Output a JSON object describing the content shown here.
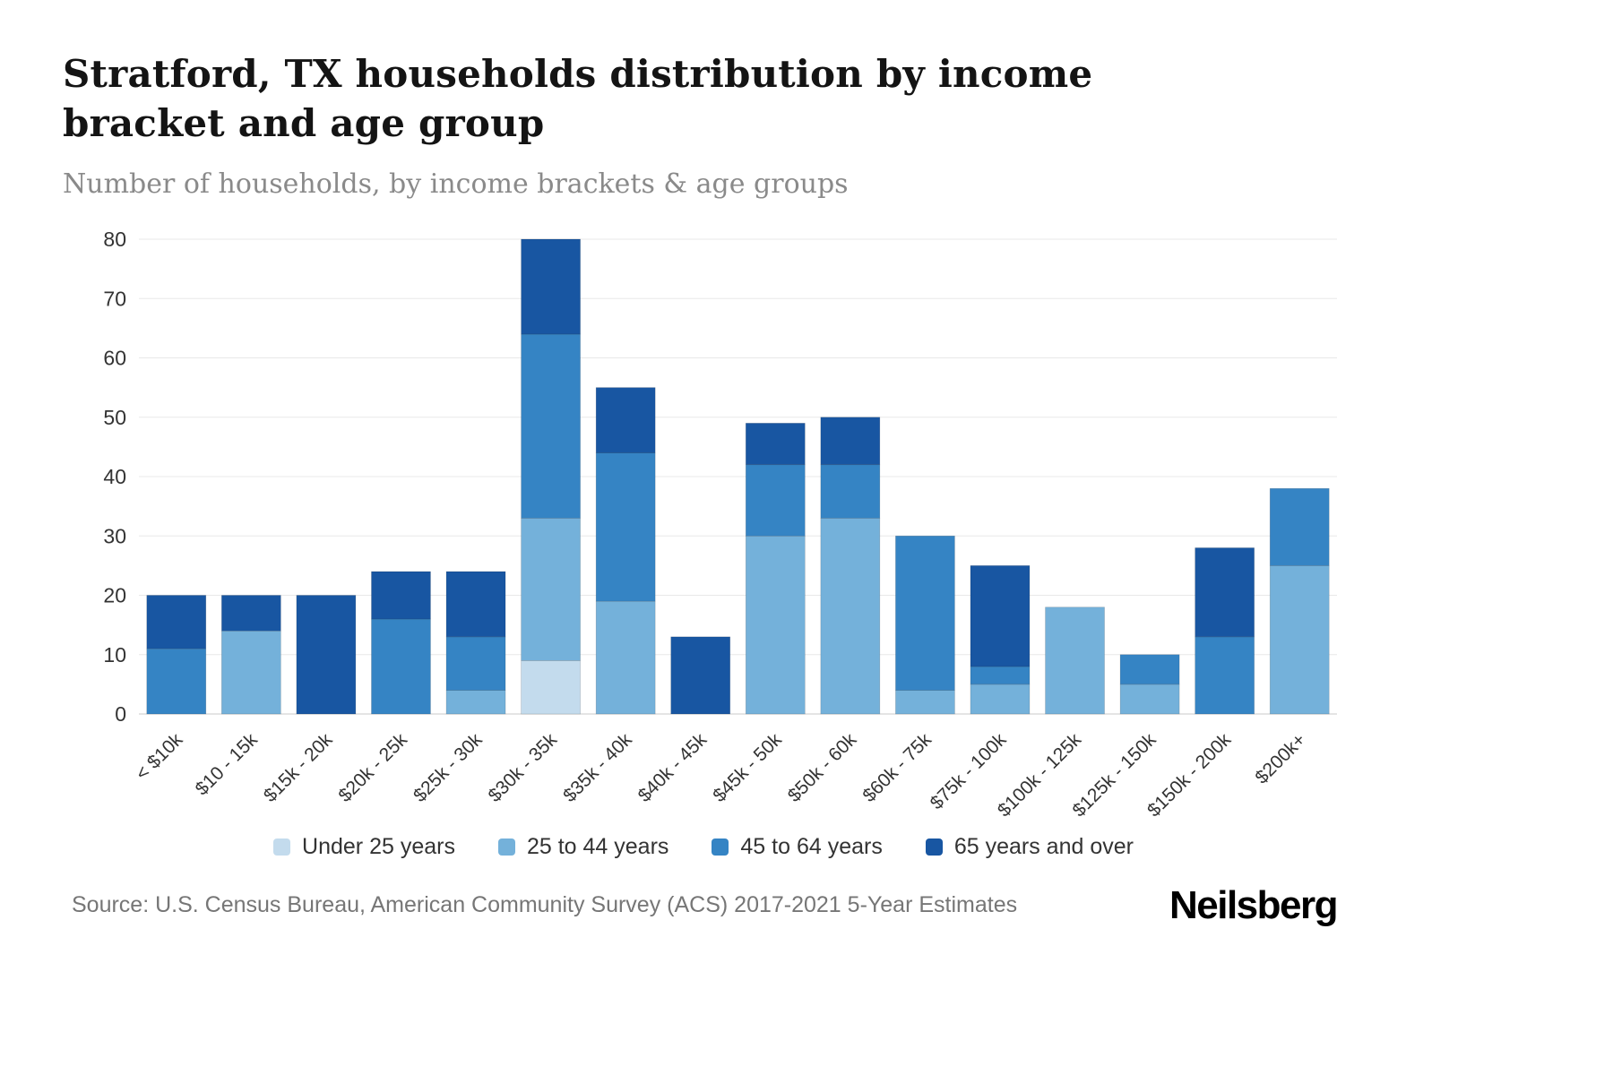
{
  "chart_data": {
    "type": "bar",
    "stacked": true,
    "title": "Stratford, TX households distribution by income bracket and age group",
    "subtitle": "Number of households, by income brackets & age groups",
    "categories": [
      "< $10k",
      "$10 - 15k",
      "$15k - 20k",
      "$20k - 25k",
      "$25k - 30k",
      "$30k - 35k",
      "$35k - 40k",
      "$40k - 45k",
      "$45k - 50k",
      "$50k - 60k",
      "$60k - 75k",
      "$75k - 100k",
      "$100k - 125k",
      "$125k - 150k",
      "$150k - 200k",
      "$200k+"
    ],
    "series": [
      {
        "name": "Under 25 years",
        "color": "#c3dbed",
        "values": [
          0,
          0,
          0,
          0,
          0,
          9,
          0,
          0,
          0,
          0,
          0,
          0,
          0,
          0,
          0,
          0
        ]
      },
      {
        "name": "25 to 44 years",
        "color": "#74b1da",
        "values": [
          0,
          14,
          0,
          0,
          4,
          24,
          19,
          0,
          30,
          33,
          4,
          5,
          18,
          5,
          0,
          25
        ]
      },
      {
        "name": "45 to 64 years",
        "color": "#3584c4",
        "values": [
          11,
          0,
          0,
          16,
          9,
          31,
          25,
          0,
          12,
          9,
          26,
          3,
          0,
          5,
          13,
          13
        ]
      },
      {
        "name": "65 years and over",
        "color": "#1856a2",
        "values": [
          9,
          6,
          20,
          8,
          11,
          16,
          11,
          13,
          7,
          8,
          0,
          17,
          0,
          0,
          15,
          0
        ]
      }
    ],
    "totals": [
      20,
      20,
      20,
      24,
      24,
      80,
      55,
      13,
      49,
      50,
      30,
      25,
      18,
      10,
      28,
      38
    ],
    "xlabel": "",
    "ylabel": "",
    "ylim": [
      0,
      80
    ],
    "yticks": [
      0,
      10,
      20,
      30,
      40,
      50,
      60,
      70,
      80
    ],
    "grid": true,
    "legend_position": "bottom"
  },
  "footer": {
    "source": "Source: U.S. Census Bureau, American Community Survey (ACS) 2017-2021 5-Year Estimates",
    "logo": "Neilsberg"
  }
}
